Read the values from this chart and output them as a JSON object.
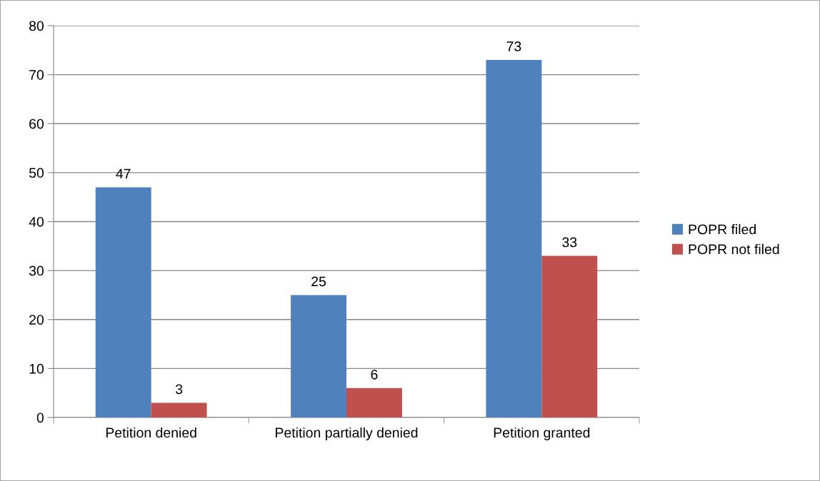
{
  "chart_data": {
    "type": "bar",
    "categories": [
      "Petition denied",
      "Petition partially denied",
      "Petition granted"
    ],
    "series": [
      {
        "name": "POPR filed",
        "color": "#4f81bd",
        "values": [
          47,
          25,
          73
        ]
      },
      {
        "name": "POPR not filed",
        "color": "#c0504d",
        "values": [
          3,
          6,
          33
        ]
      }
    ],
    "ylim": [
      0,
      80
    ],
    "yticks": [
      0,
      10,
      20,
      30,
      40,
      50,
      60,
      70,
      80
    ],
    "grid": "y",
    "legend": "right",
    "data_labels": true
  }
}
